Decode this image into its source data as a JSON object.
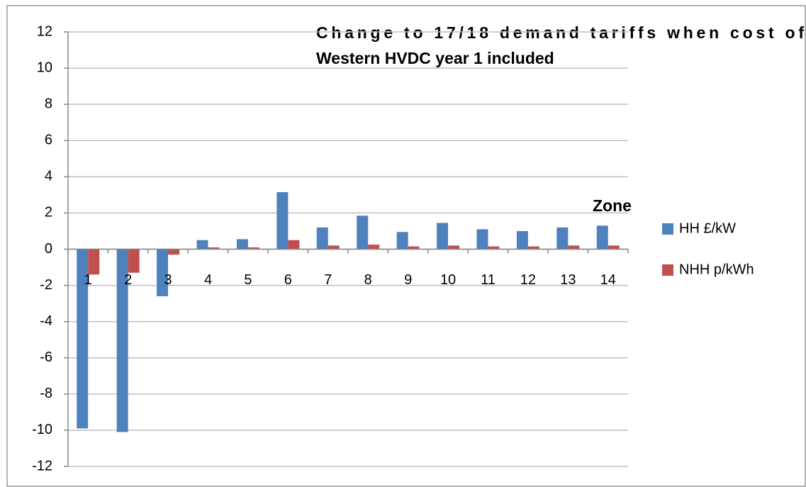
{
  "chart_data": {
    "type": "bar",
    "title": [
      "Change to 17/18 demand tariffs when cost of",
      "Western HVDC year 1 included"
    ],
    "x_label": "Zone",
    "categories": [
      "1",
      "2",
      "3",
      "4",
      "5",
      "6",
      "7",
      "8",
      "9",
      "10",
      "11",
      "12",
      "13",
      "14"
    ],
    "series": [
      {
        "name": "HH £/kW",
        "color": "#4f81bd",
        "values": [
          -9.9,
          -10.1,
          -2.6,
          0.5,
          0.55,
          3.15,
          1.2,
          1.85,
          0.95,
          1.45,
          1.1,
          1.0,
          1.2,
          1.3
        ]
      },
      {
        "name": "NHH p/kWh",
        "color": "#c0504d",
        "values": [
          -1.4,
          -1.3,
          -0.3,
          0.1,
          0.1,
          0.5,
          0.2,
          0.25,
          0.15,
          0.2,
          0.15,
          0.15,
          0.2,
          0.2
        ]
      }
    ],
    "ylim": [
      -12,
      12
    ],
    "yticks": [
      -12,
      -10,
      -8,
      -6,
      -4,
      -2,
      0,
      2,
      4,
      6,
      8,
      10,
      12
    ],
    "grid": true,
    "legend": "right"
  }
}
